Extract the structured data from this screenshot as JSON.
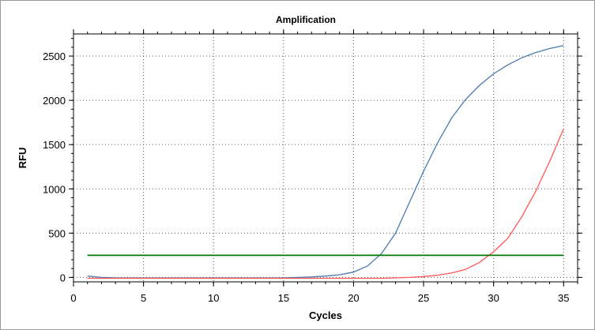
{
  "chart_data": {
    "type": "line",
    "title": "Amplification",
    "xlabel": "Cycles",
    "ylabel": "RFU",
    "xlim": [
      0,
      36
    ],
    "ylim": [
      -50,
      2750
    ],
    "xticks": [
      0,
      5,
      10,
      15,
      20,
      25,
      30,
      35
    ],
    "yticks": [
      0,
      500,
      1000,
      1500,
      2000,
      2500
    ],
    "grid": true,
    "legend": "none",
    "series": [
      {
        "color": "#4a7ab0",
        "x": [
          1,
          2,
          3,
          4,
          5,
          6,
          7,
          8,
          9,
          10,
          11,
          12,
          13,
          14,
          15,
          16,
          17,
          18,
          19,
          20,
          21,
          22,
          23,
          24,
          25,
          26,
          27,
          28,
          29,
          30,
          31,
          32,
          33,
          34,
          35
        ],
        "y": [
          15,
          0,
          -5,
          -5,
          -5,
          -5,
          -5,
          -5,
          -5,
          -5,
          -5,
          -5,
          -5,
          -5,
          -5,
          0,
          5,
          15,
          30,
          60,
          130,
          270,
          500,
          850,
          1200,
          1520,
          1800,
          2010,
          2170,
          2300,
          2400,
          2480,
          2540,
          2585,
          2620
        ]
      },
      {
        "color": "#ff5555",
        "x": [
          1,
          2,
          3,
          4,
          5,
          6,
          7,
          8,
          9,
          10,
          11,
          12,
          13,
          14,
          15,
          16,
          17,
          18,
          19,
          20,
          21,
          22,
          23,
          24,
          25,
          26,
          27,
          28,
          29,
          30,
          31,
          32,
          33,
          34,
          35
        ],
        "y": [
          -10,
          -10,
          -10,
          -10,
          -10,
          -10,
          -10,
          -10,
          -10,
          -10,
          -10,
          -10,
          -10,
          -10,
          -10,
          -10,
          -10,
          -10,
          -10,
          -10,
          -10,
          -10,
          -5,
          0,
          10,
          25,
          50,
          90,
          170,
          290,
          440,
          680,
          970,
          1310,
          1680
        ]
      },
      {
        "color": "#007700",
        "x": [
          1,
          35
        ],
        "y": [
          250,
          250
        ]
      }
    ]
  }
}
